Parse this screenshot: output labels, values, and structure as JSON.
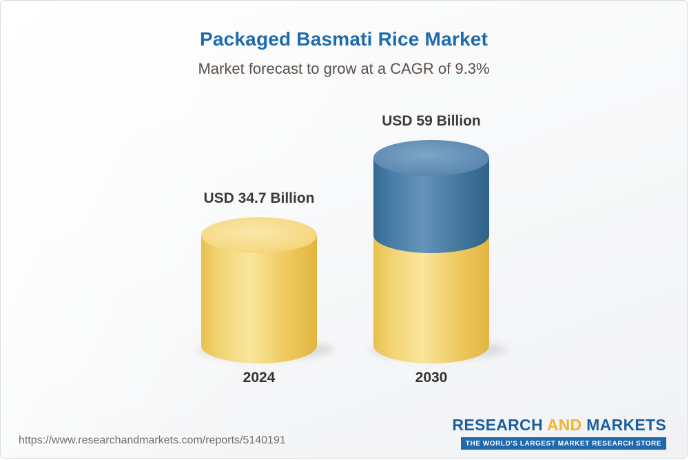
{
  "page": {
    "title": "Packaged Basmati Rice Market",
    "subtitle": "Market forecast to grow at a CAGR of 9.3%"
  },
  "footer": {
    "url": "https://www.researchandmarkets.com/reports/5140191",
    "logo": {
      "part1": "RESEARCH",
      "part2": "AND",
      "part3": "MARKETS",
      "tagline": "THE WORLD'S LARGEST MARKET RESEARCH STORE"
    }
  },
  "colors": {
    "title": "#1c6bad",
    "subtitle": "#5a4f49",
    "value_label": "#3a3a3a",
    "category_label": "#333333",
    "url": "#6f6f6f",
    "logo_blue": "#1a5f9e",
    "logo_gold": "#f0b432",
    "tagline_bg": "#1e6aad",
    "tagline_text": "#ffffff",
    "border": "#d9dbdd",
    "shadow": "#c9cbcc",
    "yellow": {
      "body": [
        "#e9c050",
        "#f1d372",
        "#f9e59c",
        "#efcb60",
        "#e2b542"
      ],
      "cap_center": "#fae8ab",
      "cap_edge": "#f2d06c"
    },
    "blue": {
      "body": [
        "#356a92",
        "#477ca6",
        "#6593b9",
        "#47799f",
        "#2e6189"
      ],
      "cap_center": "#7ea5c6",
      "cap_edge": "#4d7ca6"
    }
  },
  "chart_data": {
    "type": "bar",
    "variant": "3d-cylinder",
    "title": "Packaged Basmati Rice Market",
    "subtitle": "Market forecast to grow at a CAGR of 9.3%",
    "cagr": "9.3%",
    "unit": "USD Billion",
    "categories": [
      "2024",
      "2030"
    ],
    "values": [
      34.7,
      59
    ],
    "value_labels": [
      "USD 34.7 Billion",
      "USD 59 Billion"
    ],
    "ylim": [
      0,
      59
    ],
    "legend": "none",
    "grid": "off",
    "bars": [
      {
        "category": "2024",
        "total": 34.7,
        "value_label": "USD 34.7 Billion",
        "segments": [
          {
            "value": 34.7,
            "color": "yellow"
          }
        ]
      },
      {
        "category": "2030",
        "total": 59,
        "value_label": "USD 59 Billion",
        "segments": [
          {
            "value": 34.7,
            "color": "yellow"
          },
          {
            "value": 24.3,
            "color": "blue"
          }
        ]
      }
    ]
  }
}
